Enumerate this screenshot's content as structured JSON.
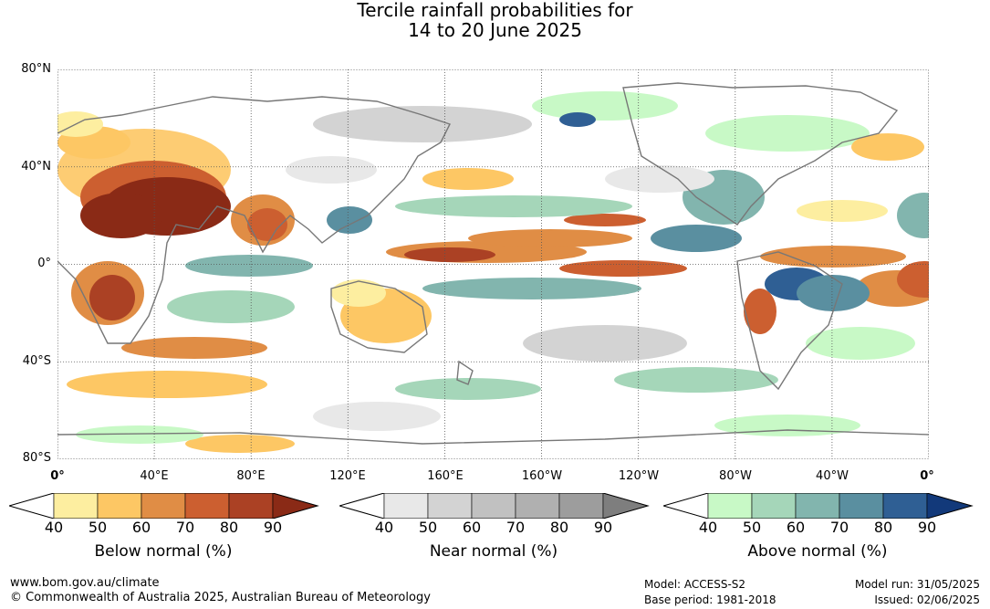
{
  "title_line1": "Tercile rainfall probabilities for",
  "title_line2": "14 to 20 June 2025",
  "map": {
    "lat_labels": [
      "80°N",
      "40°N",
      "0°",
      "40°S",
      "80°S"
    ],
    "lon_labels": [
      "0°",
      "40°E",
      "80°E",
      "120°E",
      "160°E",
      "160°W",
      "120°W",
      "80°W",
      "40°W",
      "0°"
    ],
    "grid": true,
    "ocean_color": "#ffffff",
    "land_outline_color": "#777777"
  },
  "legends": [
    {
      "name": "below",
      "title": "Below normal (%)",
      "ticks": [
        "40",
        "50",
        "60",
        "70",
        "80",
        "90"
      ],
      "colors": [
        "#ffffff",
        "#fdeea0",
        "#fdc764",
        "#e08d45",
        "#cc5f30",
        "#ab4124",
        "#8a2a16"
      ]
    },
    {
      "name": "near",
      "title": "Near normal (%)",
      "ticks": [
        "40",
        "50",
        "60",
        "70",
        "80",
        "90"
      ],
      "colors": [
        "#ffffff",
        "#e8e8e8",
        "#d3d3d3",
        "#c1c1c1",
        "#b0b0b0",
        "#9d9d9d",
        "#7e7e7e"
      ]
    },
    {
      "name": "above",
      "title": "Above normal (%)",
      "ticks": [
        "40",
        "50",
        "60",
        "70",
        "80",
        "90"
      ],
      "colors": [
        "#ffffff",
        "#c8f9c6",
        "#a5d6b9",
        "#82b5ae",
        "#5a8fa0",
        "#2f5f94",
        "#12397a"
      ]
    }
  ],
  "footer": {
    "website": "www.bom.gov.au/climate",
    "copyright": "© Commonwealth of Australia 2025, Australian Bureau of Meteorology",
    "model": "Model: ACCESS-S2",
    "base_period": "Base period: 1981-2018",
    "model_run": "Model run: 31/05/2025",
    "issued": "Issued: 02/06/2025"
  }
}
